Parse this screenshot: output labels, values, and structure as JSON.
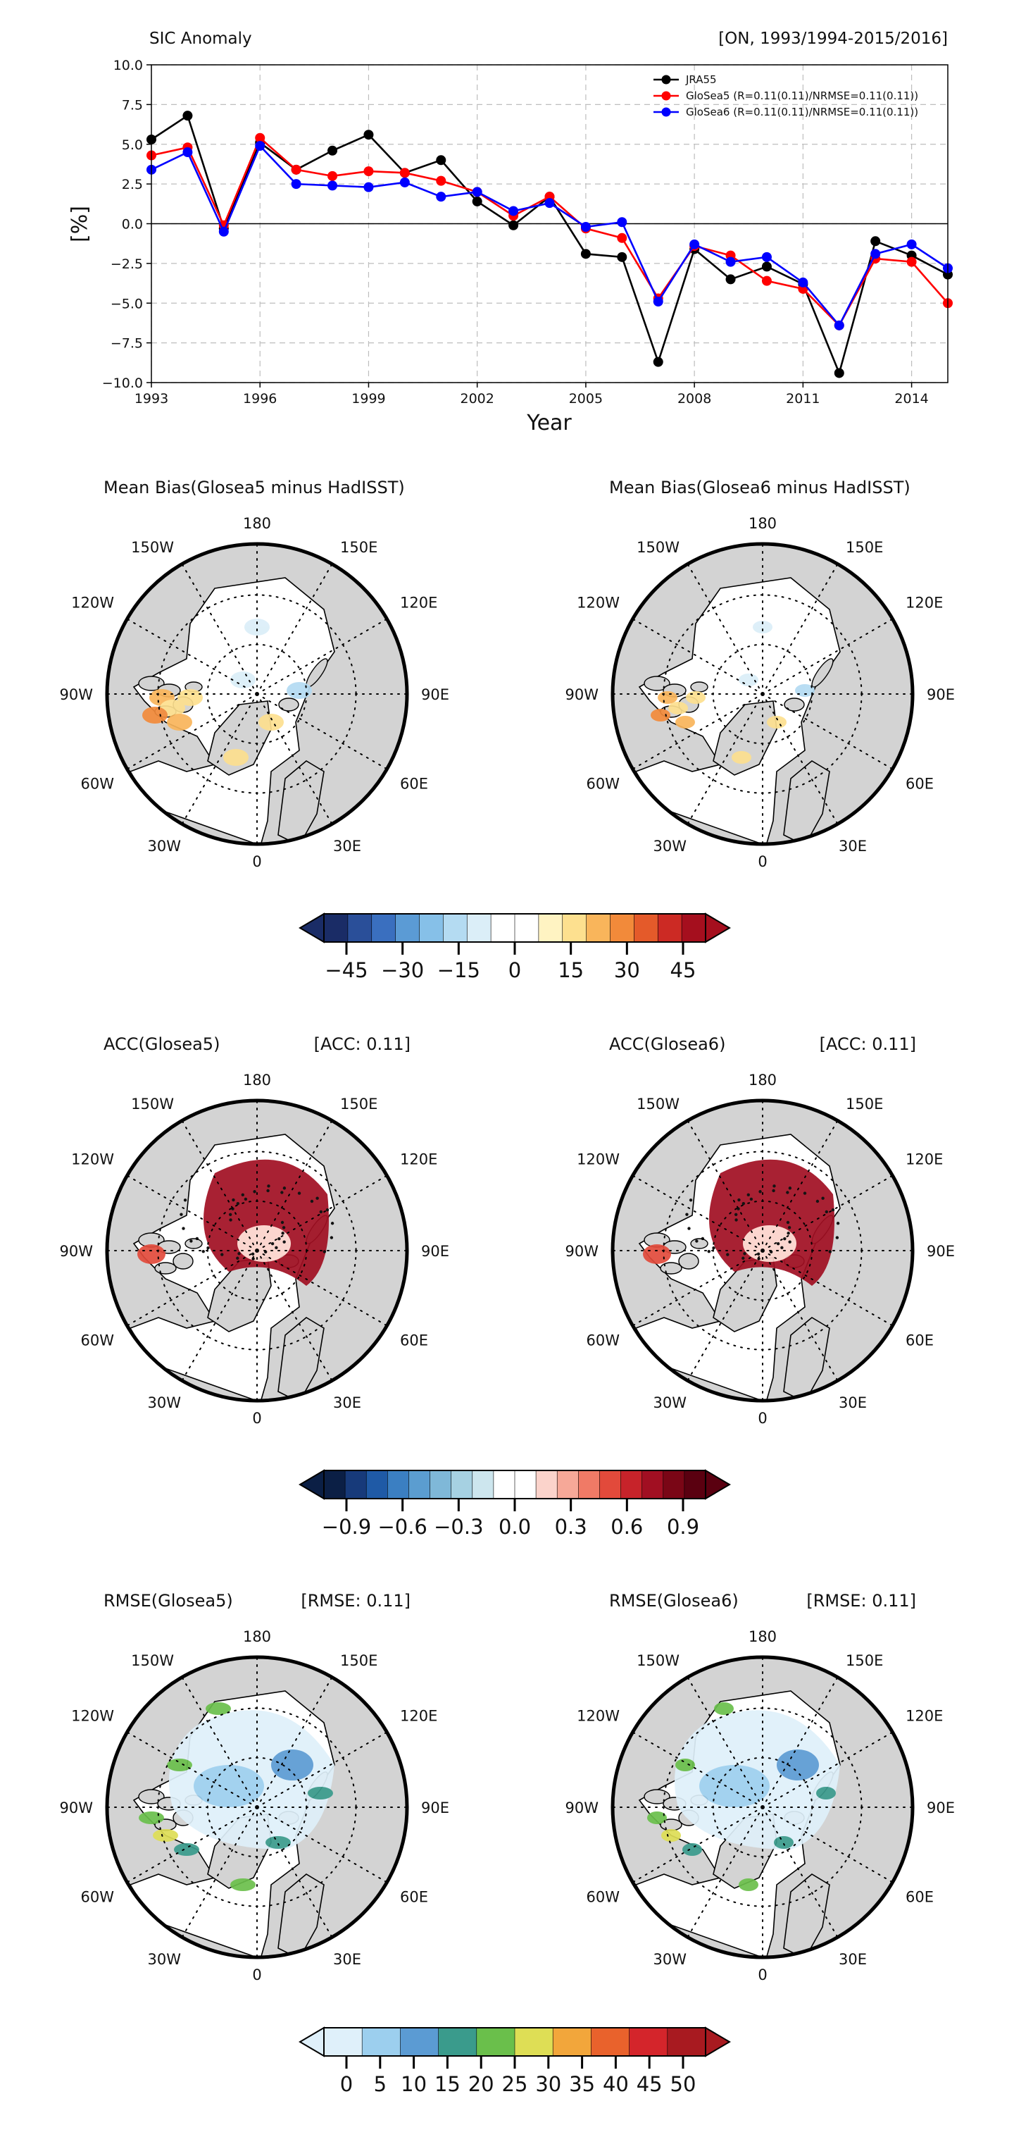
{
  "chart_data": [
    {
      "type": "line",
      "title": "SIC Anomaly",
      "subtitle": "[ON, 1993/1994-2015/2016]",
      "xlabel": "Year",
      "ylabel": "[%]",
      "xlim": [
        1993,
        2015
      ],
      "ylim": [
        -10,
        10
      ],
      "x_ticks": [
        1993,
        1996,
        1999,
        2002,
        2005,
        2008,
        2011,
        2014
      ],
      "y_ticks": [
        -10.0,
        -7.5,
        -5.0,
        -2.5,
        0.0,
        2.5,
        5.0,
        7.5,
        10.0
      ],
      "y_tick_labels": [
        "−10.0",
        "−7.5",
        "−5.0",
        "−2.5",
        "0.0",
        "2.5",
        "5.0",
        "7.5",
        "10.0"
      ],
      "grid": true,
      "legend_position": "top-right",
      "x": [
        1993,
        1994,
        1995,
        1996,
        1997,
        1998,
        1999,
        2000,
        2001,
        2002,
        2003,
        2004,
        2005,
        2006,
        2007,
        2008,
        2009,
        2010,
        2011,
        2012,
        2013,
        2014,
        2015
      ],
      "series": [
        {
          "name": "JRA55",
          "color": "#000000",
          "values": [
            5.3,
            6.8,
            -0.3,
            5.1,
            3.4,
            4.6,
            5.6,
            3.2,
            4.0,
            1.4,
            -0.1,
            1.7,
            -1.9,
            -2.1,
            -8.7,
            -1.6,
            -3.5,
            -2.7,
            -3.8,
            -9.4,
            -1.1,
            -2.0,
            -3.2
          ]
        },
        {
          "name": "GloSea5 (R=0.11(0.11)/NRMSE=0.11(0.11))",
          "color": "#ff0000",
          "values": [
            4.3,
            4.8,
            -0.1,
            5.4,
            3.4,
            3.0,
            3.3,
            3.2,
            2.7,
            2.0,
            0.5,
            1.7,
            -0.3,
            -0.9,
            -4.7,
            -1.4,
            -2.0,
            -3.6,
            -4.1,
            -6.4,
            -2.2,
            -2.4,
            -5.0
          ]
        },
        {
          "name": "GloSea6 (R=0.11(0.11)/NRMSE=0.11(0.11))",
          "color": "#0000ff",
          "values": [
            3.4,
            4.5,
            -0.5,
            4.9,
            2.5,
            2.4,
            2.3,
            2.6,
            1.7,
            2.0,
            0.8,
            1.3,
            -0.2,
            0.1,
            -4.9,
            -1.3,
            -2.4,
            -2.1,
            -3.7,
            -6.4,
            -1.9,
            -1.3,
            -2.8
          ]
        }
      ]
    },
    {
      "type": "heatmap",
      "row_title": "Mean Bias",
      "panels": [
        {
          "title": "Mean Bias(Glosea5 minus HadISST)",
          "metric": ""
        },
        {
          "title": "Mean Bias(Glosea6 minus HadISST)",
          "metric": ""
        }
      ],
      "colorbar": {
        "ticks": [
          "−45",
          "−30",
          "−15",
          "0",
          "15",
          "30",
          "45"
        ],
        "vmin": -50,
        "vmax": 50,
        "colors": [
          "#1a2c66",
          "#2a4f99",
          "#3a6fbf",
          "#5b9bd5",
          "#86c0e8",
          "#b4dbf2",
          "#dbeef8",
          "#ffffff",
          "#ffffff",
          "#fff3c2",
          "#fde08f",
          "#f9b55b",
          "#f28a3a",
          "#e45a2a",
          "#cc2a24",
          "#a50f1e"
        ]
      }
    },
    {
      "type": "heatmap",
      "row_title": "ACC",
      "panels": [
        {
          "title": "ACC(Glosea5)",
          "metric": "[ACC: 0.11]"
        },
        {
          "title": "ACC(Glosea6)",
          "metric": "[ACC: 0.11]"
        }
      ],
      "colorbar": {
        "ticks": [
          "−0.9",
          "−0.6",
          "−0.3",
          "0.0",
          "0.3",
          "0.6",
          "0.9"
        ],
        "vmin": -1.0,
        "vmax": 1.0,
        "colors": [
          "#0b1f45",
          "#173a7a",
          "#1f5aa6",
          "#3b7fc2",
          "#5b9dd0",
          "#7fb8d8",
          "#a6d1e2",
          "#cde6ee",
          "#ffffff",
          "#ffffff",
          "#fbd3cb",
          "#f6a898",
          "#f07a66",
          "#e24a3b",
          "#c7232a",
          "#a10f22",
          "#7a0616",
          "#5a0010"
        ]
      }
    },
    {
      "type": "heatmap",
      "row_title": "RMSE",
      "panels": [
        {
          "title": "RMSE(Glosea5)",
          "metric": "[RMSE: 0.11]"
        },
        {
          "title": "RMSE(Glosea6)",
          "metric": "[RMSE: 0.11]"
        }
      ],
      "colorbar": {
        "ticks": [
          "0",
          "5",
          "10",
          "15",
          "20",
          "25",
          "30",
          "35",
          "40",
          "45",
          "50"
        ],
        "vmin": 0,
        "vmax": 50,
        "colors": [
          "#dff0fa",
          "#9ccfee",
          "#5b9bd3",
          "#3a9b8c",
          "#6abf4b",
          "#dede55",
          "#f2a63b",
          "#e9622c",
          "#d4252b",
          "#a81a20"
        ]
      }
    }
  ],
  "map_labels": {
    "top": "180",
    "bottom": "0",
    "upper_left": "150W",
    "upper_right": "150E",
    "mid_upper_left": "120W",
    "mid_upper_right": "120E",
    "left": "90W",
    "right": "90E",
    "mid_lower_left": "60W",
    "mid_lower_right": "60E",
    "lower_left": "30W",
    "lower_right": "30E"
  },
  "colors": {
    "land": "#d3d3d3",
    "ocean": "#ffffff",
    "coast": "#000000",
    "grid": "#cccccc"
  }
}
